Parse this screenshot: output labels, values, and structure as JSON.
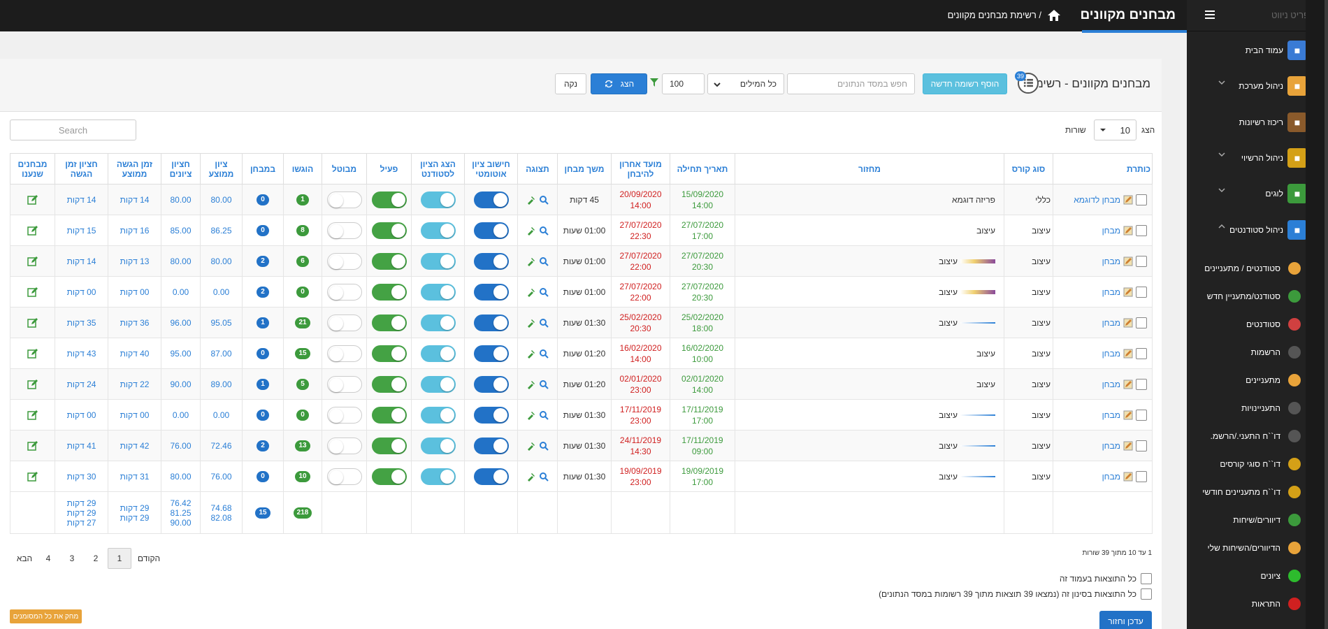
{
  "topbar": {
    "title": "מבחנים מקוונים",
    "breadcrumb": "/  רשימת מבחנים מקוונים"
  },
  "sidebar": {
    "ghost": "תפריט ניווט",
    "items": [
      {
        "label": "עמוד הבית",
        "icon": "house-icon"
      },
      {
        "label": "ניהול מערכת",
        "icon": "gears-icon"
      },
      {
        "label": "ריכוז רשיונות",
        "icon": "book-icon"
      },
      {
        "label": "ניהול הרשיוי",
        "icon": "certificate-icon"
      },
      {
        "label": "לוגים",
        "icon": "clock-icon"
      },
      {
        "label": "ניהול סטודנטים",
        "icon": "school-icon"
      }
    ],
    "subitems": [
      {
        "label": "סטודנטים / מתעניינים",
        "icon": "students-group-icon"
      },
      {
        "label": "סטודנט/מתעניין חדש",
        "icon": "add-user-icon"
      },
      {
        "label": "סטודנטים",
        "icon": "students-icon"
      },
      {
        "label": "הרשמות",
        "icon": "graduation-cap-icon"
      },
      {
        "label": "מתעניינים",
        "icon": "interested-icon"
      },
      {
        "label": "התעניינויות",
        "icon": "inquiry-icon"
      },
      {
        "label": "דו``ח התעני./הרשמ.",
        "icon": "report-cap-icon"
      },
      {
        "label": "דו``ח סוגי קורסים",
        "icon": "bar-chart-icon"
      },
      {
        "label": "דו``ח מתעניינים חודשי",
        "icon": "bar-chart-icon"
      },
      {
        "label": "דיוורים/שיחות",
        "icon": "chat-icon"
      },
      {
        "label": "הדיוורים/השיחות שלי",
        "icon": "my-chat-icon"
      },
      {
        "label": "ציונים",
        "icon": "check-icon"
      },
      {
        "label": "התראות",
        "icon": "alert-icon"
      }
    ]
  },
  "header": {
    "title": "מבחנים מקוונים - רשימה",
    "badge": "39",
    "new_button": "הוסף רשומה חדשה",
    "search_placeholder": "חפש במסד הנתונים",
    "word_mode": "כל המילים",
    "page_size": "100",
    "show_button": "הצג",
    "clear_button": "נקה"
  },
  "datatable": {
    "show_label": "הצג",
    "rows_label": "שורות",
    "length": "10",
    "search_placeholder": "Search"
  },
  "columns": [
    "כותרת",
    "סוג קורס",
    "מחזור",
    "תאריך תחילה",
    "מועד אחרון להיבחן",
    "משך מבחן",
    "תצוגה",
    "חישוב ציון אוטומטי",
    "הצג הציון לסטודנט",
    "פעיל",
    "מבוטל",
    "הוגשו",
    "במבחן",
    "ציון ממוצע",
    "חציון ציונים",
    "זמן הגשה ממוצע",
    "חציון זמן הגשה",
    "מבחנים שנענו"
  ],
  "rows": [
    {
      "title": "מבחן לדוגמא",
      "course": "כללי",
      "cycle": "פריזה דוגמא",
      "start_date": "15/09/2020",
      "start_time": "14:00",
      "due_date": "20/09/2020",
      "due_time": "14:00",
      "duration": "45 דקות",
      "auto": true,
      "show": true,
      "active": true,
      "cancel": false,
      "submitted": "1",
      "in_test": "0",
      "avg": "80.00",
      "median": "80.00",
      "avg_time": "14 דקות",
      "median_time": "14 דקות",
      "cycle_bar": "none"
    },
    {
      "title": "מבחן",
      "course": "עיצוב",
      "cycle": "עיצוב",
      "start_date": "27/07/2020",
      "start_time": "17:00",
      "due_date": "27/07/2020",
      "due_time": "22:30",
      "duration": "01:00 שעות",
      "auto": true,
      "show": true,
      "active": true,
      "cancel": false,
      "submitted": "8",
      "in_test": "0",
      "avg": "86.25",
      "median": "85.00",
      "avg_time": "16 דקות",
      "median_time": "15 דקות",
      "cycle_bar": "none"
    },
    {
      "title": "מבחן",
      "course": "עיצוב",
      "cycle": "עיצוב",
      "start_date": "27/07/2020",
      "start_time": "20:30",
      "due_date": "27/07/2020",
      "due_time": "22:00",
      "duration": "01:00 שעות",
      "auto": true,
      "show": true,
      "active": true,
      "cancel": false,
      "submitted": "6",
      "in_test": "2",
      "avg": "80.00",
      "median": "80.00",
      "avg_time": "13 דקות",
      "median_time": "14 דקות",
      "cycle_bar": "purple"
    },
    {
      "title": "מבחן",
      "course": "עיצוב",
      "cycle": "עיצוב",
      "start_date": "27/07/2020",
      "start_time": "20:30",
      "due_date": "27/07/2020",
      "due_time": "22:00",
      "duration": "01:00 שעות",
      "auto": true,
      "show": true,
      "active": true,
      "cancel": false,
      "submitted": "0",
      "in_test": "2",
      "avg": "0.00",
      "median": "0.00",
      "avg_time": "00 דקות",
      "median_time": "00 דקות",
      "cycle_bar": "purple"
    },
    {
      "title": "מבחן",
      "course": "עיצוב",
      "cycle": "עיצוב",
      "start_date": "25/02/2020",
      "start_time": "18:00",
      "due_date": "25/02/2020",
      "due_time": "20:30",
      "duration": "01:30 שעות",
      "auto": true,
      "show": true,
      "active": true,
      "cancel": false,
      "submitted": "21",
      "in_test": "1",
      "avg": "95.05",
      "median": "96.00",
      "avg_time": "36 דקות",
      "median_time": "35 דקות",
      "cycle_bar": "blue"
    },
    {
      "title": "מבחן",
      "course": "עיצוב",
      "cycle": "עיצוב",
      "start_date": "16/02/2020",
      "start_time": "10:00",
      "due_date": "16/02/2020",
      "due_time": "14:00",
      "duration": "01:20 שעות",
      "auto": true,
      "show": true,
      "active": true,
      "cancel": false,
      "submitted": "15",
      "in_test": "0",
      "avg": "87.00",
      "median": "95.00",
      "avg_time": "40 דקות",
      "median_time": "43 דקות",
      "cycle_bar": "none"
    },
    {
      "title": "מבחן",
      "course": "עיצוב",
      "cycle": "עיצוב",
      "start_date": "02/01/2020",
      "start_time": "14:00",
      "due_date": "02/01/2020",
      "due_time": "23:00",
      "duration": "01:20 שעות",
      "auto": true,
      "show": true,
      "active": true,
      "cancel": false,
      "submitted": "5",
      "in_test": "1",
      "avg": "89.00",
      "median": "90.00",
      "avg_time": "22 דקות",
      "median_time": "24 דקות",
      "cycle_bar": "none"
    },
    {
      "title": "מבחן",
      "course": "עיצוב",
      "cycle": "עיצוב",
      "start_date": "17/11/2019",
      "start_time": "17:00",
      "due_date": "17/11/2019",
      "due_time": "23:00",
      "duration": "01:30 שעות",
      "auto": true,
      "show": true,
      "active": true,
      "cancel": false,
      "submitted": "0",
      "in_test": "0",
      "avg": "0.00",
      "median": "0.00",
      "avg_time": "00 דקות",
      "median_time": "00 דקות",
      "cycle_bar": "blue"
    },
    {
      "title": "מבחן",
      "course": "עיצוב",
      "cycle": "עיצוב",
      "start_date": "17/11/2019",
      "start_time": "09:00",
      "due_date": "24/11/2019",
      "due_time": "14:30",
      "duration": "01:30 שעות",
      "auto": true,
      "show": true,
      "active": true,
      "cancel": false,
      "submitted": "13",
      "in_test": "2",
      "avg": "72.46",
      "median": "76.00",
      "avg_time": "42 דקות",
      "median_time": "41 דקות",
      "cycle_bar": "blue"
    },
    {
      "title": "מבחן",
      "course": "עיצוב",
      "cycle": "עיצוב",
      "start_date": "19/09/2019",
      "start_time": "17:00",
      "due_date": "19/09/2019",
      "due_time": "23:00",
      "duration": "01:30 שעות",
      "auto": true,
      "show": true,
      "active": true,
      "cancel": false,
      "submitted": "10",
      "in_test": "0",
      "avg": "76.00",
      "median": "80.00",
      "avg_time": "31 דקות",
      "median_time": "30 דקות",
      "cycle_bar": "blue"
    }
  ],
  "totals": {
    "submitted": "218",
    "in_test": "15",
    "avg": [
      "74.68",
      "82.08"
    ],
    "median": [
      "76.42",
      "81.25",
      "90.00"
    ],
    "avg_time": [
      "29 דקות",
      "29 דקות"
    ],
    "median_time": [
      "29 דקות",
      "29 דקות",
      "27 דקות"
    ]
  },
  "pagination": {
    "info": "1 עד 10 מתוך 39 שורות",
    "prev": "הקודם",
    "pages": [
      "1",
      "2",
      "3",
      "4"
    ],
    "next": "הבא",
    "active": "1"
  },
  "footer": {
    "check_page": "כל התוצאות בעמוד זה",
    "check_all": "כל התוצאות בסינון זה (נמצאו 39 תוצאות מתוך 39 רשומות במסד הנתונים)",
    "delete_button": "מחק את כל המסומנים",
    "save_button": "עדכן וחזור"
  },
  "colors": {
    "accent": "#2b7fd6",
    "green": "#3c9a3c",
    "red": "#d02020",
    "info": "#5bc0de",
    "warning": "#e8a33a"
  }
}
